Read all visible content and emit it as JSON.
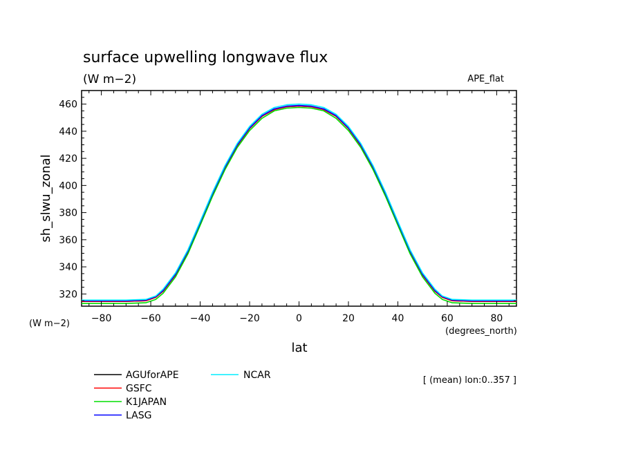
{
  "chart_data": {
    "type": "line",
    "title": "surface upwelling longwave flux",
    "subtitle": "(W m−2)",
    "dataset_label": "APE_flat",
    "ylabel": "sh_slwu_zonal",
    "y_units_label": "(W m−2)",
    "xlabel": "lat",
    "x_units_label": "(degrees_north)",
    "averaging_note": "[ (mean) lon:0..357 ]",
    "xlim": [
      -88,
      88
    ],
    "ylim": [
      311,
      470
    ],
    "xticks": [
      -80,
      -60,
      -40,
      -20,
      0,
      20,
      40,
      60,
      80
    ],
    "xtick_labels": [
      "−80",
      "−60",
      "−40",
      "−20",
      "0",
      "20",
      "40",
      "60",
      "80"
    ],
    "yticks": [
      320,
      340,
      360,
      380,
      400,
      420,
      440,
      460
    ],
    "ytick_labels": [
      "320",
      "340",
      "360",
      "380",
      "400",
      "420",
      "440",
      "460"
    ],
    "x": [
      -88,
      -80,
      -70,
      -62,
      -58,
      -55,
      -50,
      -45,
      -40,
      -35,
      -30,
      -25,
      -20,
      -15,
      -10,
      -5,
      0,
      5,
      10,
      15,
      20,
      25,
      30,
      35,
      40,
      45,
      50,
      55,
      58,
      62,
      70,
      80,
      88
    ],
    "series": [
      {
        "name": "AGUforAPE",
        "color": "#000000",
        "values": [
          314.5,
          314.5,
          314.5,
          315.0,
          317.5,
          322.0,
          334.0,
          351.0,
          372.0,
          393.5,
          413.0,
          429.5,
          442.0,
          451.0,
          456.0,
          458.0,
          458.5,
          458.0,
          456.0,
          451.0,
          442.0,
          429.5,
          413.0,
          393.5,
          372.0,
          351.0,
          334.0,
          322.0,
          317.5,
          315.0,
          314.5,
          314.5,
          314.5
        ]
      },
      {
        "name": "GSFC",
        "color": "#ff0000",
        "values": [
          314.5,
          314.5,
          314.5,
          315.0,
          317.5,
          322.0,
          334.0,
          351.0,
          372.0,
          393.5,
          413.0,
          429.5,
          442.0,
          451.0,
          456.0,
          458.0,
          458.5,
          458.0,
          456.0,
          451.0,
          442.0,
          429.5,
          413.0,
          393.5,
          372.0,
          351.0,
          334.0,
          322.0,
          317.5,
          315.0,
          314.5,
          314.5,
          314.5
        ]
      },
      {
        "name": "K1JAPAN",
        "color": "#00dd00",
        "values": [
          313.0,
          313.0,
          313.0,
          313.5,
          316.0,
          320.5,
          332.5,
          349.5,
          370.5,
          392.0,
          411.5,
          428.0,
          440.5,
          449.5,
          455.0,
          457.0,
          457.5,
          457.0,
          455.0,
          449.5,
          440.5,
          428.0,
          411.5,
          392.0,
          370.5,
          349.5,
          332.5,
          320.5,
          316.0,
          313.5,
          313.0,
          313.0,
          313.0
        ]
      },
      {
        "name": "LASG",
        "color": "#0000ff",
        "values": [
          315.0,
          315.0,
          315.0,
          315.5,
          318.0,
          322.5,
          334.5,
          351.5,
          372.5,
          394.0,
          413.5,
          430.0,
          442.5,
          451.5,
          456.5,
          458.5,
          459.0,
          458.5,
          456.5,
          451.5,
          442.5,
          430.0,
          413.5,
          394.0,
          372.5,
          351.5,
          334.5,
          322.5,
          318.0,
          315.5,
          315.0,
          315.0,
          315.0
        ]
      },
      {
        "name": "NCAR",
        "color": "#00eeff",
        "values": [
          315.5,
          315.5,
          315.5,
          316.0,
          318.5,
          323.5,
          335.5,
          352.5,
          373.5,
          395.0,
          414.5,
          431.0,
          443.5,
          452.5,
          457.5,
          459.5,
          460.0,
          459.5,
          457.5,
          452.5,
          443.5,
          431.0,
          414.5,
          395.0,
          373.5,
          352.5,
          335.5,
          323.5,
          318.5,
          316.0,
          315.5,
          315.5,
          315.5
        ]
      }
    ],
    "grid": false,
    "legend_position": "bottom-left"
  }
}
